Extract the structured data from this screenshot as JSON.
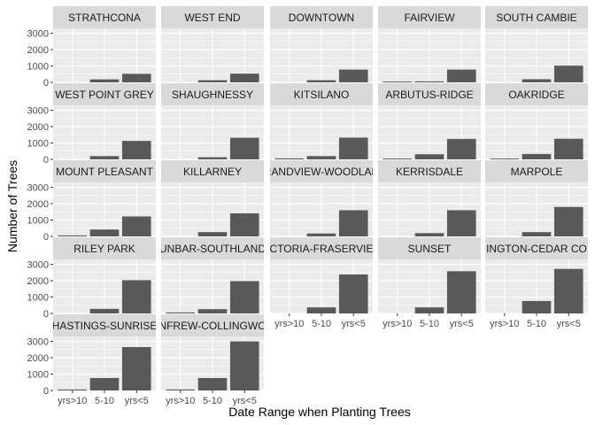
{
  "chart_data": {
    "type": "bar",
    "facet_layout": "wrap",
    "xlabel": "Date Range when Planting Trees",
    "ylabel": "Number of Trees",
    "categories": [
      "yrs>10",
      "5-10",
      "yrs<5"
    ],
    "ylim": [
      0,
      3300
    ],
    "yticks": [
      0,
      1000,
      2000,
      3000
    ],
    "grid": true,
    "panel_background": "#ebebeb",
    "strip_background": "#d9d9d9",
    "bar_color": "#595959",
    "gridline_color": "#ffffff",
    "facets": [
      {
        "name": "STRATHCONA",
        "label": "STRATHCONA",
        "values": [
          0,
          180,
          520
        ]
      },
      {
        "name": "WEST END",
        "label": "WEST END",
        "values": [
          0,
          130,
          530
        ]
      },
      {
        "name": "DOWNTOWN",
        "label": "DOWNTOWN",
        "values": [
          0,
          130,
          780
        ]
      },
      {
        "name": "FAIRVIEW",
        "label": "FAIRVIEW",
        "values": [
          50,
          60,
          780
        ]
      },
      {
        "name": "SOUTH CAMBIE",
        "label": "SOUTH CAMBIE",
        "values": [
          0,
          190,
          1020
        ]
      },
      {
        "name": "WEST POINT GREY",
        "label": "WEST POINT GREY",
        "values": [
          0,
          200,
          1130
        ]
      },
      {
        "name": "SHAUGHNESSY",
        "label": "SHAUGHNESSY",
        "values": [
          0,
          130,
          1320
        ]
      },
      {
        "name": "KITSILANO",
        "label": "KITSILANO",
        "values": [
          60,
          200,
          1330
        ]
      },
      {
        "name": "ARBUTUS-RIDGE",
        "label": "ARBUTUS-RIDGE",
        "values": [
          50,
          310,
          1250
        ]
      },
      {
        "name": "OAKRIDGE",
        "label": "OAKRIDGE",
        "values": [
          50,
          330,
          1260
        ]
      },
      {
        "name": "MOUNT PLEASANT",
        "label": "MOUNT PLEASANT",
        "values": [
          60,
          420,
          1220
        ]
      },
      {
        "name": "KILLARNEY",
        "label": "KILLARNEY",
        "values": [
          0,
          260,
          1410
        ]
      },
      {
        "name": "RENFREW-COLLINGWOOD",
        "label": "RANDVIEW-WOODLAN",
        "values": [
          0,
          180,
          1600
        ]
      },
      {
        "name": "KERRISDALE",
        "label": "KERRISDALE",
        "values": [
          0,
          200,
          1600
        ]
      },
      {
        "name": "MARPOLE",
        "label": "MARPOLE",
        "values": [
          0,
          260,
          1800
        ]
      },
      {
        "name": "RILEY PARK",
        "label": "RILEY PARK",
        "values": [
          0,
          280,
          2030
        ]
      },
      {
        "name": "DUNBAR-SOUTHLANDS",
        "label": "UNBAR-SOUTHLAND",
        "values": [
          60,
          260,
          1980
        ]
      },
      {
        "name": "VICTORIA-FRASERVIEW",
        "label": "CTORIA-FRASERVIE",
        "values": [
          0,
          370,
          2380
        ]
      },
      {
        "name": "SUNSET",
        "label": "SUNSET",
        "values": [
          0,
          370,
          2580
        ]
      },
      {
        "name": "KENSINGTON-CEDAR COTTAGE",
        "label": "INGTON-CEDAR CO",
        "values": [
          0,
          760,
          2720
        ]
      },
      {
        "name": "HASTINGS-SUNRISE",
        "label": "HASTINGS-SUNRISE",
        "values": [
          60,
          760,
          2650
        ]
      },
      {
        "name": "RENFREW-COLLINGWOOD",
        "label": "NFREW-COLLINGWO",
        "values": [
          60,
          760,
          3000
        ]
      }
    ]
  }
}
